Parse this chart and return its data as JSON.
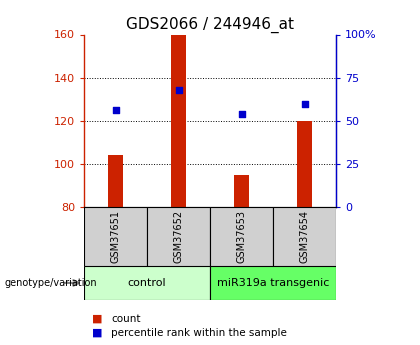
{
  "title": "GDS2066 / 244946_at",
  "samples": [
    "GSM37651",
    "GSM37652",
    "GSM37653",
    "GSM37654"
  ],
  "bar_values": [
    104,
    160,
    95,
    120
  ],
  "percentile_values": [
    56,
    68,
    54,
    60
  ],
  "bar_color": "#cc2200",
  "percentile_color": "#0000cc",
  "ylim_left": [
    80,
    160
  ],
  "ylim_right": [
    0,
    100
  ],
  "yticks_left": [
    80,
    100,
    120,
    140,
    160
  ],
  "yticks_right": [
    0,
    25,
    50,
    75,
    100
  ],
  "ytick_labels_right": [
    "0",
    "25",
    "50",
    "75",
    "100%"
  ],
  "grid_lines": [
    100,
    120,
    140
  ],
  "groups": [
    {
      "label": "control",
      "indices": [
        0,
        1
      ],
      "color": "#ccffcc"
    },
    {
      "label": "miR319a transgenic",
      "indices": [
        2,
        3
      ],
      "color": "#66ff66"
    }
  ],
  "genotype_label": "genotype/variation",
  "legend_items": [
    {
      "label": "count",
      "color": "#cc2200"
    },
    {
      "label": "percentile rank within the sample",
      "color": "#0000cc"
    }
  ],
  "background_color": "#ffffff",
  "sample_box_color": "#d0d0d0",
  "title_fontsize": 11,
  "tick_fontsize": 8,
  "legend_fontsize": 7.5,
  "sample_fontsize": 7,
  "group_fontsize": 8
}
